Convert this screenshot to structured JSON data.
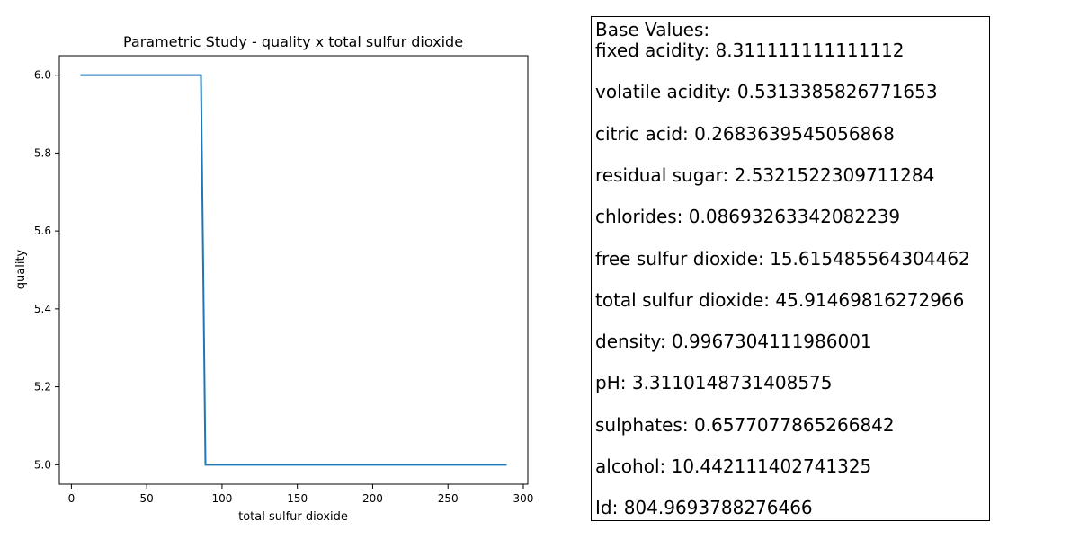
{
  "chart_data": {
    "type": "line",
    "title": "Parametric Study - quality x total sulfur dioxide",
    "xlabel": "total sulfur dioxide",
    "ylabel": "quality",
    "xlim": [
      -8,
      303
    ],
    "ylim": [
      4.95,
      6.05
    ],
    "xticks": [
      0,
      50,
      100,
      150,
      200,
      250,
      300
    ],
    "xtick_labels": [
      "0",
      "50",
      "100",
      "150",
      "200",
      "250",
      "300"
    ],
    "yticks": [
      5.0,
      5.2,
      5.4,
      5.6,
      5.8,
      6.0
    ],
    "ytick_labels": [
      "5.0",
      "5.2",
      "5.4",
      "5.6",
      "5.8",
      "6.0"
    ],
    "grid": false,
    "series": [
      {
        "color": "#1f77b4",
        "x": [
          6,
          86,
          89,
          289
        ],
        "y": [
          6.0,
          6.0,
          5.0,
          5.0
        ]
      }
    ]
  },
  "base_values": {
    "title": "Base Values:",
    "lines": [
      "fixed acidity: 8.311111111111112",
      "volatile acidity: 0.5313385826771653",
      "citric acid: 0.2683639545056868",
      "residual sugar: 2.5321522309711284",
      "chlorides: 0.08693263342082239",
      "free sulfur dioxide: 15.615485564304462",
      "total sulfur dioxide: 45.91469816272966",
      "density: 0.9967304111986001",
      "pH: 3.3110148731408575",
      "sulphates: 0.6577077865266842",
      "alcohol: 10.442111402741325",
      "Id: 804.9693788276466"
    ]
  }
}
